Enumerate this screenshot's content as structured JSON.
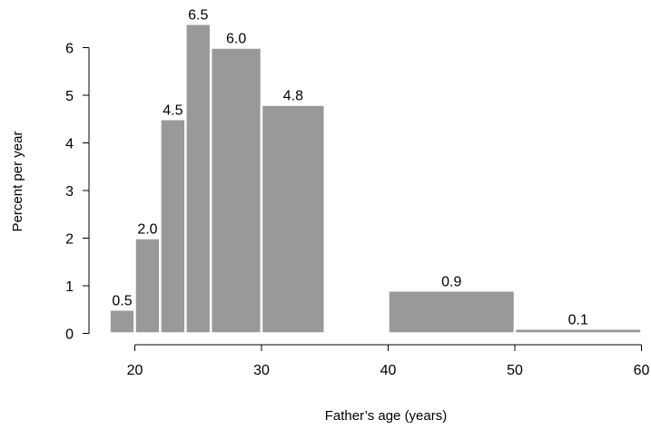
{
  "chart_data": {
    "type": "bar",
    "title": "",
    "xlabel": "Father’s age (years)",
    "ylabel": "Percent per year",
    "xlim": [
      18,
      60
    ],
    "ylim": [
      0,
      6.5
    ],
    "xticks": [
      20,
      30,
      40,
      50,
      60
    ],
    "xtick_labels": [
      "20",
      "30",
      "40",
      "50",
      "60"
    ],
    "yticks": [
      0,
      1,
      2,
      3,
      4,
      5,
      6
    ],
    "ytick_labels": [
      "0",
      "1",
      "2",
      "3",
      "4",
      "5",
      "6"
    ],
    "bar_color": "#999999",
    "bar_edge_color": "#ffffff",
    "bins": [
      {
        "start": 18,
        "end": 20,
        "value": 0.5,
        "label": "0.5"
      },
      {
        "start": 20,
        "end": 22,
        "value": 2.0,
        "label": "2.0"
      },
      {
        "start": 22,
        "end": 24,
        "value": 4.5,
        "label": "4.5"
      },
      {
        "start": 24,
        "end": 26,
        "value": 6.5,
        "label": "6.5"
      },
      {
        "start": 26,
        "end": 30,
        "value": 6.0,
        "label": "6.0"
      },
      {
        "start": 30,
        "end": 35,
        "value": 4.8,
        "label": "4.8"
      },
      {
        "start": 40,
        "end": 50,
        "value": 0.9,
        "label": "0.9"
      },
      {
        "start": 50,
        "end": 60,
        "value": 0.1,
        "label": "0.1"
      }
    ]
  }
}
